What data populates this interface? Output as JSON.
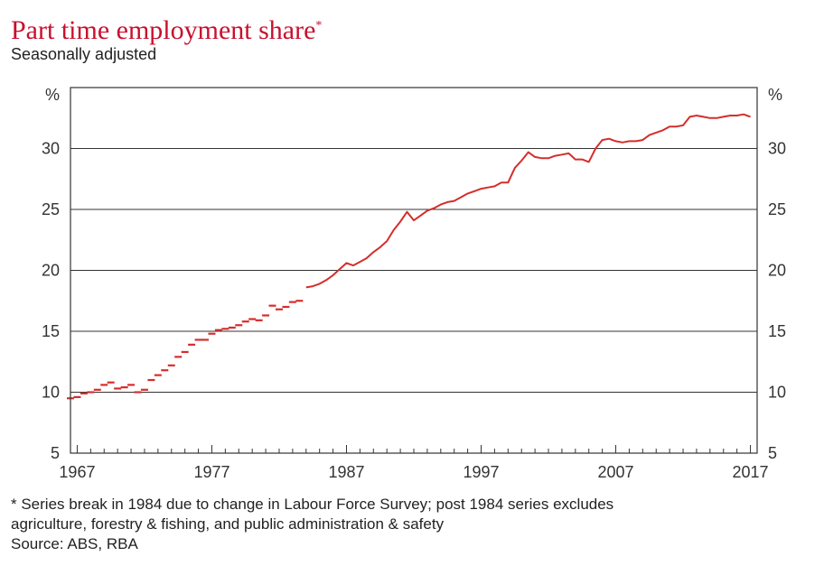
{
  "chart_data": {
    "type": "line",
    "title": "Part time employment share",
    "title_marker": "*",
    "subtitle": "Seasonally adjusted",
    "ylabel_left": "%",
    "ylabel_right": "%",
    "ylim": [
      5,
      35
    ],
    "y_ticks": [
      5,
      10,
      15,
      20,
      25,
      30
    ],
    "xlim": [
      1967,
      2018
    ],
    "x_ticks": [
      1967,
      1977,
      1987,
      1997,
      2007,
      2017
    ],
    "grid": true,
    "line_color": "#d42e2b",
    "series_pre_break": {
      "x": [
        1967.0,
        1967.5,
        1968.0,
        1968.5,
        1969.0,
        1969.5,
        1970.0,
        1970.5,
        1971.0,
        1971.5,
        1972.0,
        1972.5,
        1973.0,
        1973.5,
        1974.0,
        1974.5,
        1975.0,
        1975.5,
        1976.0,
        1976.5,
        1977.0,
        1977.5,
        1978.0,
        1978.5,
        1979.0,
        1979.5,
        1980.0,
        1980.5,
        1981.0,
        1981.5,
        1982.0,
        1982.5,
        1983.0,
        1983.5,
        1984.0
      ],
      "y": [
        9.5,
        9.6,
        9.9,
        10.0,
        10.2,
        10.6,
        10.8,
        10.3,
        10.4,
        10.6,
        10.0,
        10.2,
        11.0,
        11.4,
        11.8,
        12.2,
        12.9,
        13.3,
        13.9,
        14.3,
        14.3,
        14.8,
        15.1,
        15.2,
        15.3,
        15.5,
        15.8,
        16.0,
        15.9,
        16.3,
        17.1,
        16.8,
        17.0,
        17.4,
        17.5
      ]
    },
    "series_post_break": {
      "x": [
        1984.5,
        1985.0,
        1985.5,
        1986.0,
        1986.5,
        1987.0,
        1987.5,
        1988.0,
        1988.5,
        1989.0,
        1989.5,
        1990.0,
        1990.5,
        1991.0,
        1991.5,
        1992.0,
        1992.5,
        1993.0,
        1993.5,
        1994.0,
        1994.5,
        1995.0,
        1995.5,
        1996.0,
        1996.5,
        1997.0,
        1997.5,
        1998.0,
        1998.5,
        1999.0,
        1999.5,
        2000.0,
        2000.5,
        2001.0,
        2001.5,
        2002.0,
        2002.5,
        2003.0,
        2003.5,
        2004.0,
        2004.5,
        2005.0,
        2005.5,
        2006.0,
        2006.5,
        2007.0,
        2007.5,
        2008.0,
        2008.5,
        2009.0,
        2009.5,
        2010.0,
        2010.5,
        2011.0,
        2011.5,
        2012.0,
        2012.5,
        2013.0,
        2013.5,
        2014.0,
        2014.5,
        2015.0,
        2015.5,
        2016.0,
        2016.5,
        2017.0,
        2017.5
      ],
      "y": [
        18.6,
        18.7,
        18.9,
        19.2,
        19.6,
        20.1,
        20.6,
        20.4,
        20.7,
        21.0,
        21.5,
        21.9,
        22.4,
        23.3,
        24.0,
        24.8,
        24.1,
        24.5,
        24.9,
        25.1,
        25.4,
        25.6,
        25.7,
        26.0,
        26.3,
        26.5,
        26.7,
        26.8,
        26.9,
        27.2,
        27.2,
        28.4,
        29.0,
        29.7,
        29.3,
        29.2,
        29.2,
        29.4,
        29.5,
        29.6,
        29.1,
        29.1,
        28.9,
        30.0,
        30.7,
        30.8,
        30.6,
        30.5,
        30.6,
        30.6,
        30.7,
        31.1,
        31.3,
        31.5,
        31.8,
        31.8,
        31.9,
        32.6,
        32.7,
        32.6,
        32.5,
        32.5,
        32.6,
        32.7,
        32.7,
        32.8,
        32.6
      ]
    }
  },
  "footnote_lines": [
    "* Series break in 1984 due to change in Labour Force Survey; post 1984 series excludes",
    "agriculture, forestry & fishing, and public administration & safety"
  ],
  "source": "Source: ABS, RBA"
}
